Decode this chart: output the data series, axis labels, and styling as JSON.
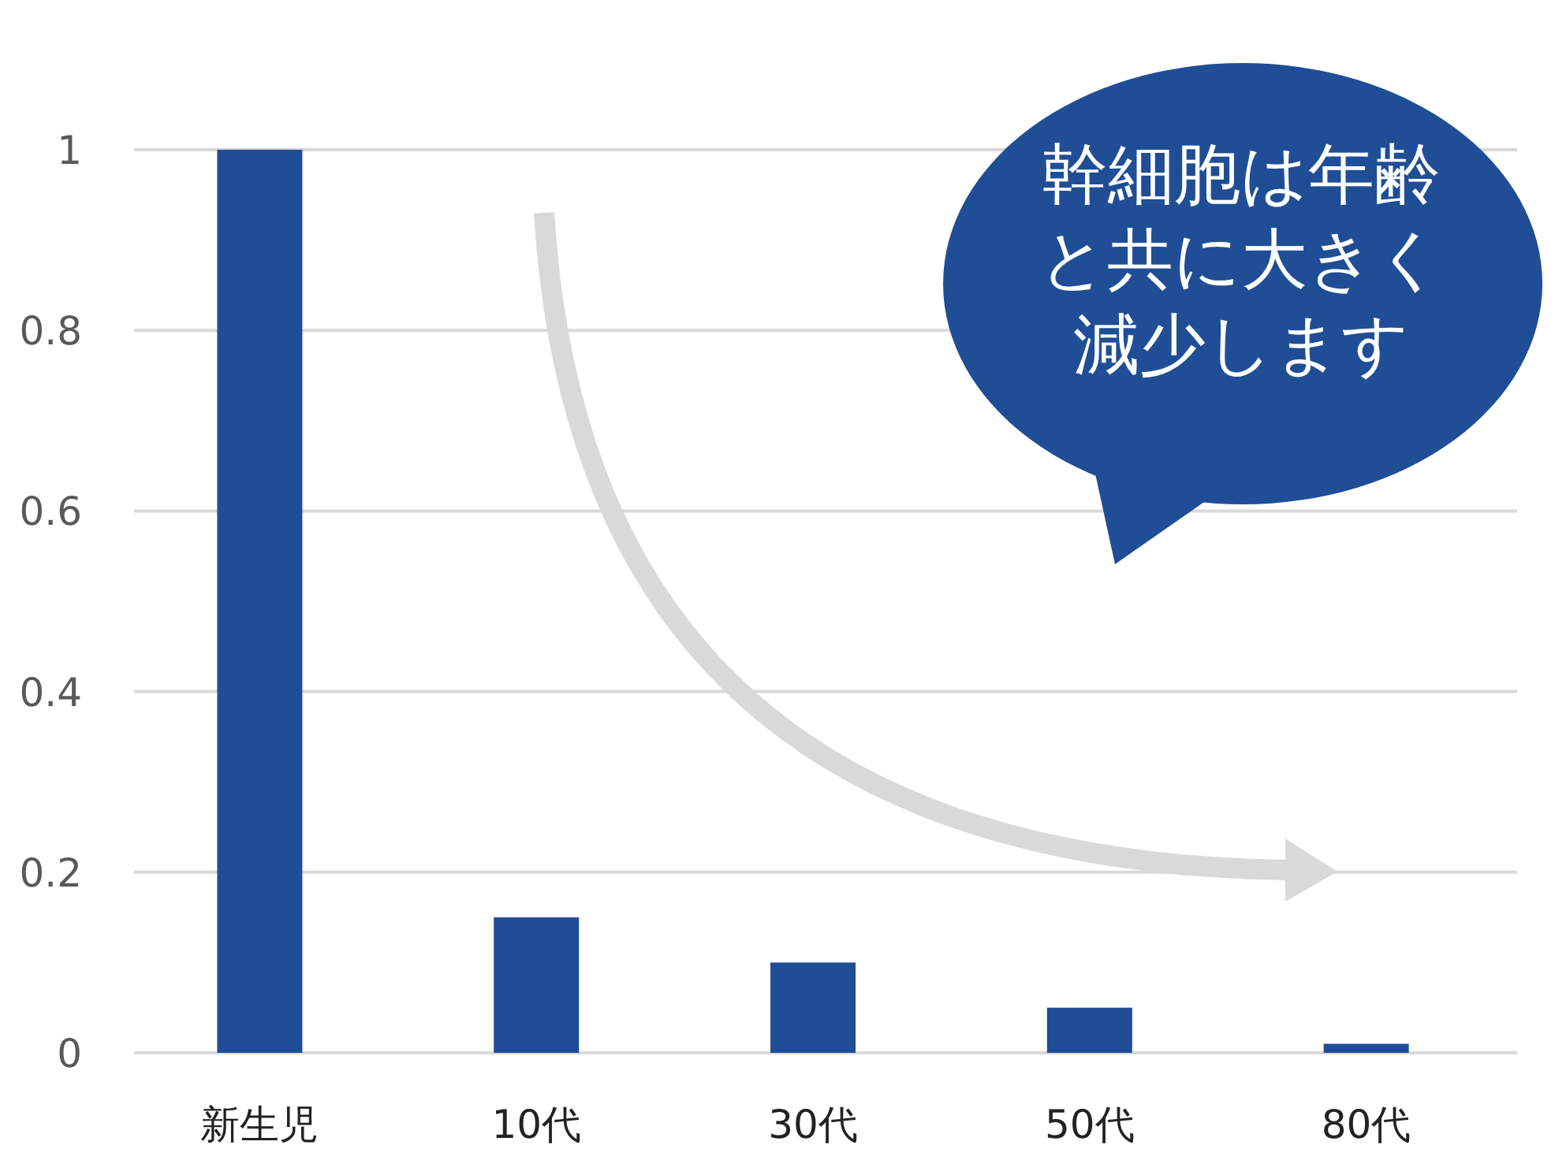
{
  "chart_data": {
    "type": "bar",
    "categories": [
      "新生児",
      "10代",
      "30代",
      "50代",
      "80代"
    ],
    "values": [
      1,
      0.15,
      0.1,
      0.05,
      0.01
    ],
    "color": "#1f4e96",
    "ylim": [
      0,
      1
    ],
    "yticks": [
      0,
      0.2,
      0.4,
      0.6,
      0.8,
      1
    ],
    "grid": "y",
    "annotations": [
      "幹細胞は年齢と共に大きく減少します"
    ]
  }
}
